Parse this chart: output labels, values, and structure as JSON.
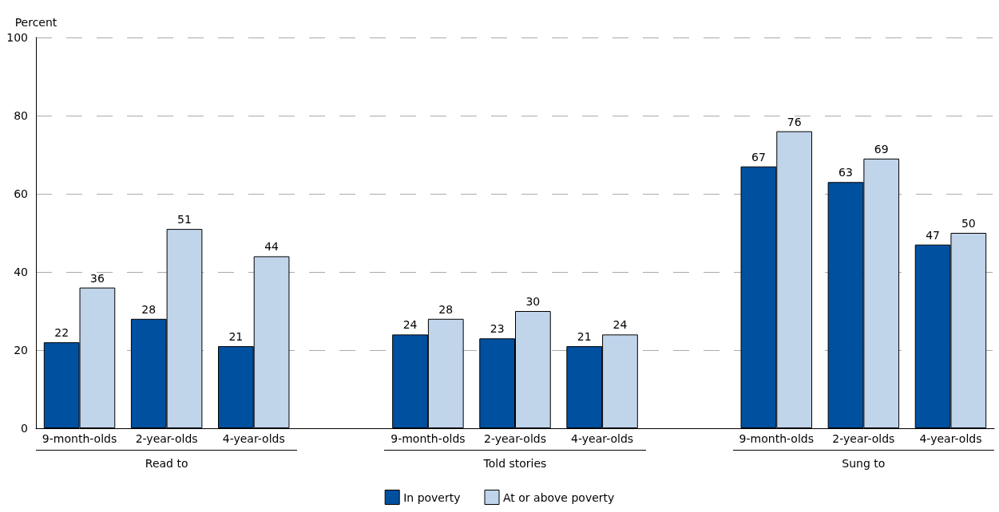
{
  "chart_data": {
    "type": "bar",
    "ylabel": "Percent",
    "categories": [
      "9-month-olds",
      "2-year-olds",
      "4-year-olds",
      null,
      "9-month-olds",
      "2-year-olds",
      "4-year-olds",
      null,
      "9-month-olds",
      "2-year-olds",
      "4-year-olds"
    ],
    "series": [
      {
        "name": "In poverty",
        "color": "#0050a0",
        "values": [
          22,
          28,
          21,
          null,
          24,
          23,
          21,
          null,
          67,
          63,
          47
        ]
      },
      {
        "name": "At or above poverty",
        "color": "#c0d4ea",
        "values": [
          36,
          51,
          44,
          null,
          28,
          30,
          24,
          null,
          76,
          69,
          50
        ]
      }
    ],
    "annotations": [
      "Read to",
      "Told stories",
      "Sung to"
    ],
    "ylim": [
      0,
      100
    ],
    "yticks": [
      0,
      20,
      40,
      60,
      80,
      100
    ],
    "grid": "y",
    "legend": "bottom",
    "data_labels": true
  }
}
